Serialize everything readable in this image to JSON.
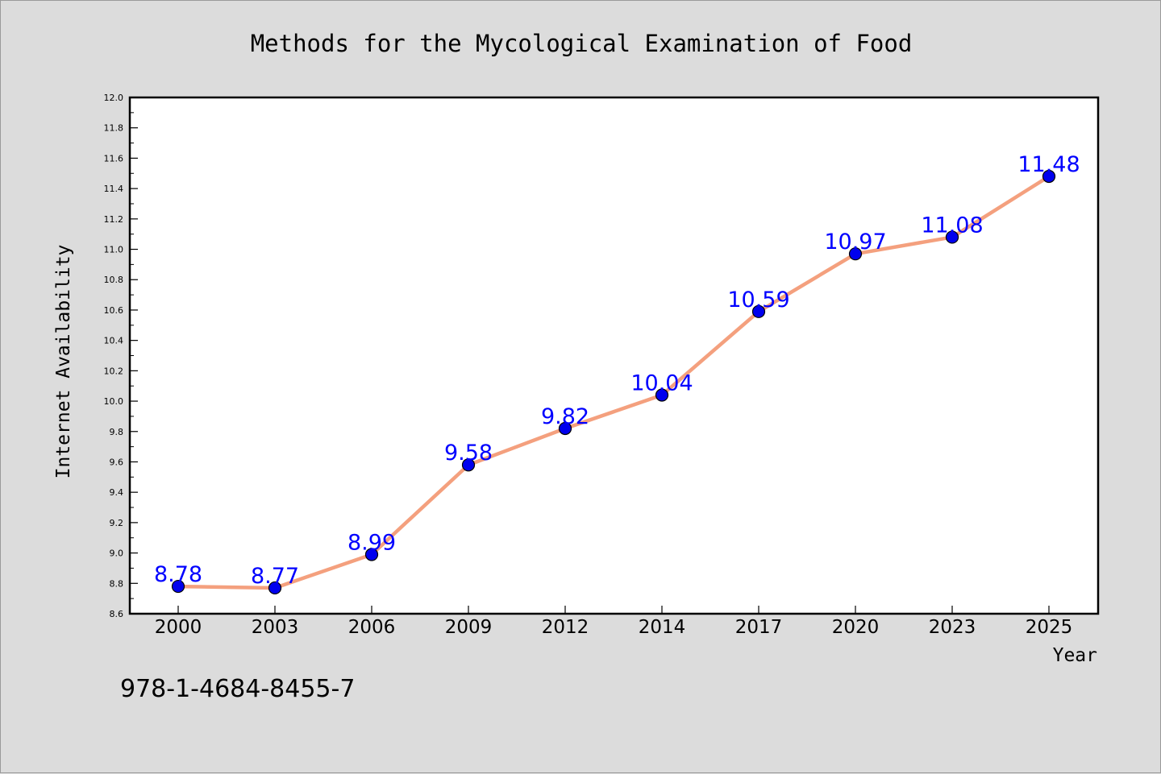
{
  "page": {
    "title": "Methods for the Mycological Examination of Food",
    "footer_text": "978-1-4684-8455-7"
  },
  "colors": {
    "background": "#dcdcdc",
    "plot_background": "#ffffff",
    "line": "#f4a07e",
    "marker": "#0000ee",
    "data_label": "#0000ff",
    "text": "#000000"
  },
  "chart_data": {
    "type": "line",
    "title": "Methods for the Mycological Examination of Food",
    "xlabel": "Year",
    "ylabel": "Internet Availability",
    "categories": [
      "2000",
      "2003",
      "2006",
      "2009",
      "2012",
      "2014",
      "2017",
      "2020",
      "2023",
      "2025"
    ],
    "series": [
      {
        "values": [
          8.78,
          8.77,
          8.99,
          9.58,
          9.82,
          10.04,
          10.59,
          10.97,
          11.08,
          11.48
        ]
      }
    ],
    "data_labels": [
      "8.78",
      "8.77",
      "8.99",
      "9.58",
      "9.82",
      "10.04",
      "10.59",
      "10.97",
      "11.08",
      "11.48"
    ],
    "ylim": [
      8.6,
      12.0
    ],
    "yticks": [
      "8.6",
      "8.8",
      "9.0",
      "9.2",
      "9.4",
      "9.6",
      "9.8",
      "10.0",
      "10.2",
      "10.4",
      "10.6",
      "10.8",
      "11.0",
      "11.2",
      "11.4",
      "11.6",
      "11.8",
      "12.0"
    ],
    "grid": false,
    "legend": "none"
  }
}
